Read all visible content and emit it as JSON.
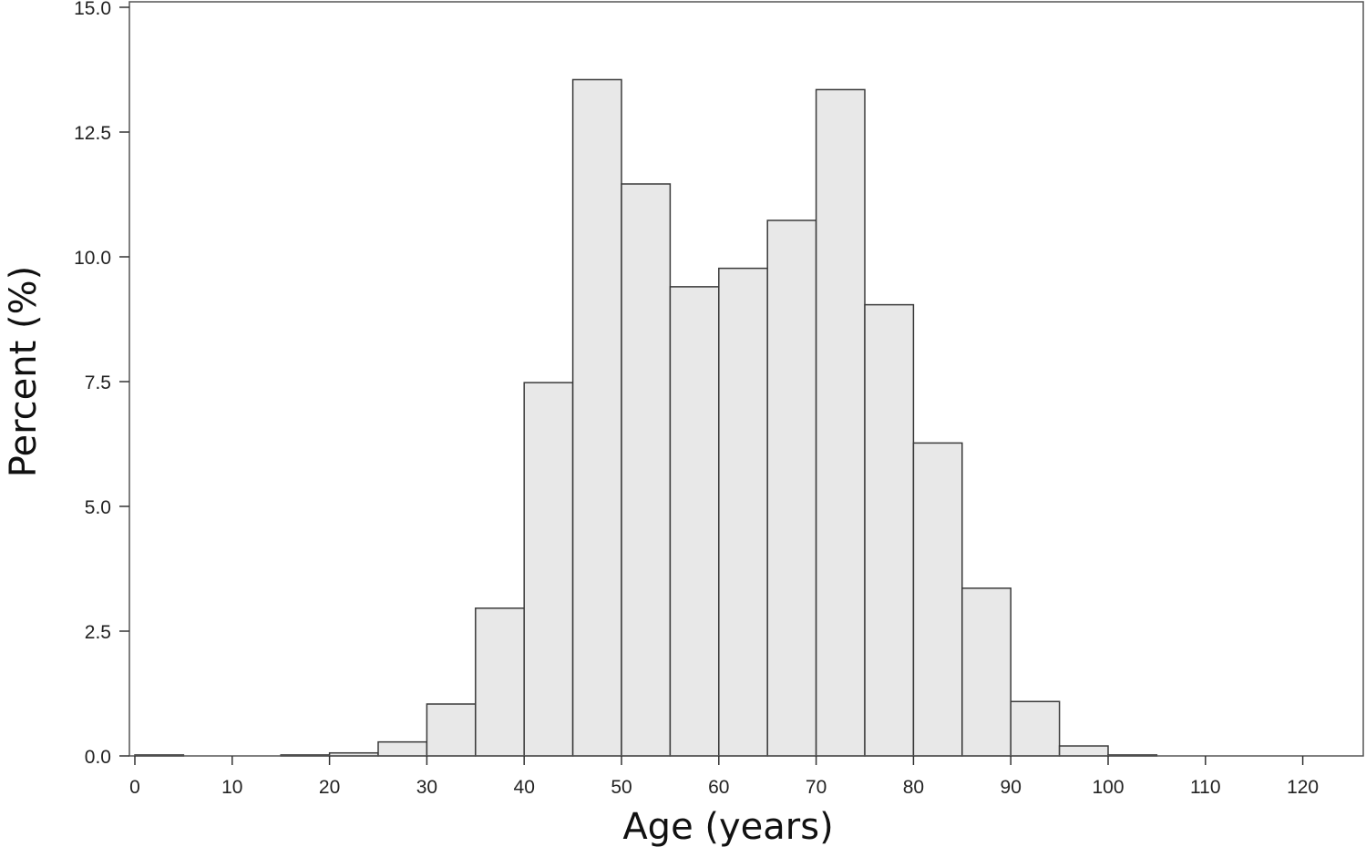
{
  "chart_data": {
    "type": "bar",
    "title": "",
    "xlabel": "Age (years)",
    "ylabel": "Percent (%)",
    "bin_width": 5,
    "bin_starts": [
      0,
      5,
      10,
      15,
      20,
      25,
      30,
      35,
      40,
      45,
      50,
      55,
      60,
      65,
      70,
      75,
      80,
      85,
      90,
      95,
      100,
      105,
      110,
      115,
      120
    ],
    "values": [
      0.02,
      0,
      0,
      0.02,
      0.06,
      0.28,
      1.04,
      2.96,
      7.48,
      13.55,
      11.46,
      9.4,
      9.77,
      10.73,
      13.35,
      9.04,
      6.27,
      3.36,
      1.09,
      0.2,
      0.02,
      0,
      0,
      0,
      0
    ],
    "xlim": [
      0,
      126
    ],
    "ylim": [
      0,
      15
    ],
    "x_ticks": [
      "0",
      "10",
      "20",
      "30",
      "40",
      "50",
      "60",
      "70",
      "80",
      "90",
      "100",
      "110",
      "120"
    ],
    "y_ticks": [
      "0.0",
      "2.5",
      "5.0",
      "7.5",
      "10.0",
      "12.5",
      "15.0"
    ],
    "grid": false,
    "legend": "none",
    "colors": {
      "bar_fill": "#e8e8e8",
      "bar_stroke": "#3a3a3a",
      "frame": "#555555",
      "text": "#222222"
    }
  }
}
